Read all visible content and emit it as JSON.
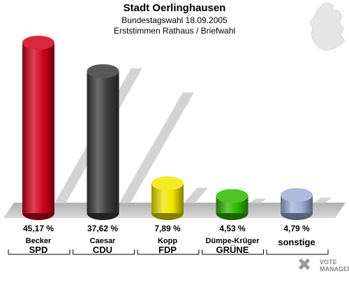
{
  "header": {
    "title": "Stadt Oerlinghausen",
    "subtitle": "Bundestagswahl 18.09.2005",
    "subtitle2": "Erststimmen Rathaus / Briefwahl"
  },
  "chart_data": {
    "type": "bar",
    "title": "Stadt Oerlinghausen",
    "categories": [
      "SPD",
      "CDU",
      "FDP",
      "GRÜNE",
      "sonstige"
    ],
    "candidates": [
      "Becker",
      "Caesar",
      "Kopp",
      "Dümpe-Krüger",
      ""
    ],
    "values": [
      45.17,
      37.62,
      7.89,
      4.53,
      4.79
    ],
    "value_labels": [
      "45,17 %",
      "37,62 %",
      "7,89 %",
      "4,53 %",
      "4,79 %"
    ],
    "colors": [
      "#d0021b",
      "#3c3c3c",
      "#f2e600",
      "#2fb800",
      "#9fb0d8"
    ],
    "ylim": [
      0,
      50
    ],
    "grid": false
  },
  "logo": {
    "line1": "VOTE",
    "line2": "MANAGER"
  },
  "icons": [
    "germany-map-icon",
    "vote-manager-logo-icon"
  ]
}
